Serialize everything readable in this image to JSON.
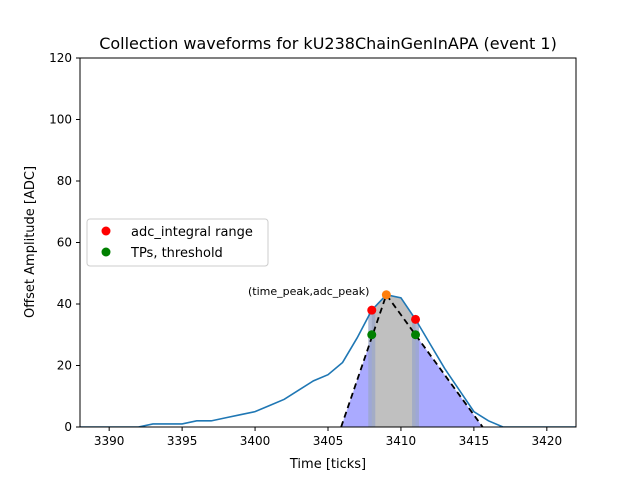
{
  "chart_data": {
    "type": "line",
    "title": "Collection waveforms for kU238ChainGenInAPA (event 1)",
    "xlabel": "Time [ticks]",
    "ylabel": "Offset Amplitude [ADC]",
    "xlim": [
      3388,
      3422
    ],
    "ylim": [
      0,
      120
    ],
    "xticks": [
      3390,
      3395,
      3400,
      3405,
      3410,
      3415,
      3420
    ],
    "yticks": [
      0,
      20,
      40,
      60,
      80,
      100,
      120
    ],
    "grid": false,
    "legend_position": "center-left",
    "colors": {
      "waveform": "#1f77b4",
      "integral_range": "#ff0000",
      "threshold": "#008000",
      "peak": "#ff7f0e",
      "triangle_fill": "#aaaaff",
      "tp_band": "#c0c0c0",
      "tp_band_edge": "#b0c4de"
    },
    "waveform": {
      "x": [
        3388,
        3389,
        3390,
        3391,
        3392,
        3393,
        3394,
        3395,
        3396,
        3397,
        3398,
        3399,
        3400,
        3401,
        3402,
        3403,
        3404,
        3405,
        3406,
        3407,
        3408,
        3409,
        3410,
        3411,
        3412,
        3413,
        3414,
        3415,
        3416,
        3417,
        3418,
        3419,
        3420,
        3421,
        3422
      ],
      "y": [
        0,
        0,
        0,
        0,
        0,
        1,
        1,
        1,
        2,
        2,
        3,
        4,
        5,
        7,
        9,
        12,
        15,
        17,
        21,
        29,
        38,
        43,
        42,
        35,
        27,
        19,
        12,
        5,
        2,
        0,
        0,
        0,
        0,
        0,
        0
      ]
    },
    "tp_band": {
      "x_start": 3408,
      "x_end": 3411
    },
    "triangle": {
      "x": [
        3405.9,
        3409,
        3415.6
      ],
      "y": [
        0,
        43,
        0
      ]
    },
    "adc_integral_range": {
      "x": [
        3408,
        3411
      ],
      "y": [
        38,
        35
      ]
    },
    "tp_threshold": {
      "x": [
        3408,
        3411
      ],
      "y": [
        30,
        30
      ]
    },
    "peak": {
      "x": 3409,
      "y": 43
    },
    "legend": [
      {
        "label": "adc_integral range",
        "color": "#ff0000"
      },
      {
        "label": "TPs, threshold",
        "color": "#008000"
      }
    ],
    "annotation": "(time_peak,adc_peak)"
  }
}
